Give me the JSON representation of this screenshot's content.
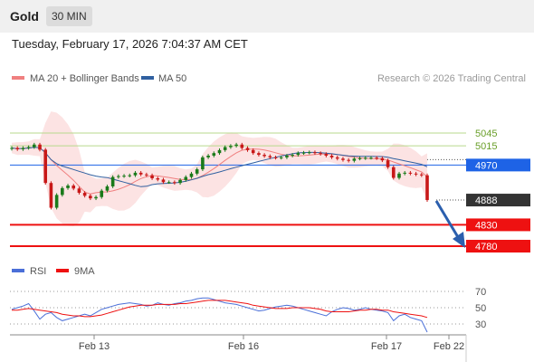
{
  "header": {
    "symbol": "Gold",
    "timeframe": "30 MIN",
    "datetime": "Tuesday, February 17, 2026 7:04:37 AM CET"
  },
  "chart_data": {
    "type": "line",
    "title": "Gold",
    "legend": [
      {
        "name": "MA 20 + Bollinger Bands",
        "color": "#f08080"
      },
      {
        "name": "MA 50",
        "color": "#3060a0"
      }
    ],
    "credit": "Research © 2026 Trading Central",
    "x_ticks": [
      "Feb 13",
      "Feb 16",
      "Feb 17",
      "Feb 22"
    ],
    "ylim": [
      4760,
      5220
    ],
    "price_series": {
      "name": "Gold",
      "close": [
        5010,
        5007,
        5010,
        5012,
        5018,
        5006,
        4928,
        4870,
        4900,
        4916,
        4922,
        4915,
        4905,
        4898,
        4892,
        4895,
        4910,
        4920,
        4942,
        4944,
        4945,
        4946,
        4952,
        4948,
        4946,
        4939,
        4936,
        4930,
        4930,
        4928,
        4935,
        4942,
        4950,
        4960,
        4988,
        4992,
        4998,
        5005,
        5012,
        5015,
        5018,
        5010,
        5005,
        4998,
        4994,
        4991,
        4988,
        4987,
        4988,
        4992,
        4994,
        4998,
        4999,
        5000,
        4998,
        4996,
        4992,
        4988,
        4985,
        4982,
        4980,
        4985,
        4986,
        4987,
        4987,
        4986,
        4981,
        4965,
        4940,
        4950,
        4952,
        4950,
        4948,
        4946,
        4888
      ],
      "current_price": 4888
    },
    "levels": [
      {
        "label": "5045",
        "value": 5045,
        "color": "#7cb342",
        "kind": "resistance"
      },
      {
        "label": "5015",
        "value": 5015,
        "color": "#7cb342",
        "kind": "resistance"
      },
      {
        "label": "4970",
        "value": 4970,
        "color": "#1e63e6",
        "kind": "pivot"
      },
      {
        "label": "4888",
        "value": 4888,
        "color": "#333333",
        "kind": "last"
      },
      {
        "label": "4830",
        "value": 4830,
        "color": "#ee1111",
        "kind": "support"
      },
      {
        "label": "4780",
        "value": 4780,
        "color": "#ee1111",
        "kind": "support"
      }
    ],
    "rsi": {
      "legend": [
        {
          "name": "RSI",
          "color": "#4a6fd8"
        },
        {
          "name": "9MA",
          "color": "#ee1111"
        }
      ],
      "ylim": [
        10,
        80
      ],
      "ticks": [
        70,
        50,
        30
      ],
      "values": [
        48,
        50,
        52,
        55,
        46,
        36,
        42,
        44,
        38,
        34,
        36,
        38,
        40,
        42,
        40,
        44,
        48,
        50,
        52,
        54,
        55,
        56,
        55,
        54,
        52,
        53,
        56,
        54,
        53,
        55,
        56,
        58,
        59,
        61,
        62,
        62,
        60,
        58,
        56,
        55,
        54,
        52,
        50,
        48,
        46,
        47,
        49,
        51,
        52,
        53,
        52,
        50,
        48,
        46,
        44,
        42,
        40,
        45,
        48,
        50,
        49,
        47,
        48,
        50,
        48,
        47,
        46,
        44,
        34,
        40,
        42,
        38,
        36,
        34,
        20
      ],
      "ma": [
        47,
        47,
        48,
        49,
        48,
        47,
        46,
        45,
        44,
        42,
        41,
        40,
        40,
        39,
        39,
        40,
        41,
        43,
        45,
        47,
        49,
        51,
        52,
        53,
        53,
        53,
        54,
        54,
        54,
        54,
        55,
        55,
        56,
        57,
        58,
        59,
        59,
        59,
        59,
        58,
        57,
        56,
        55,
        53,
        52,
        51,
        50,
        49,
        49,
        49,
        50,
        50,
        50,
        50,
        49,
        48,
        46,
        45,
        45,
        45,
        45,
        46,
        47,
        47,
        48,
        48,
        47,
        47,
        45,
        44,
        43,
        42,
        41,
        40,
        38
      ]
    }
  }
}
